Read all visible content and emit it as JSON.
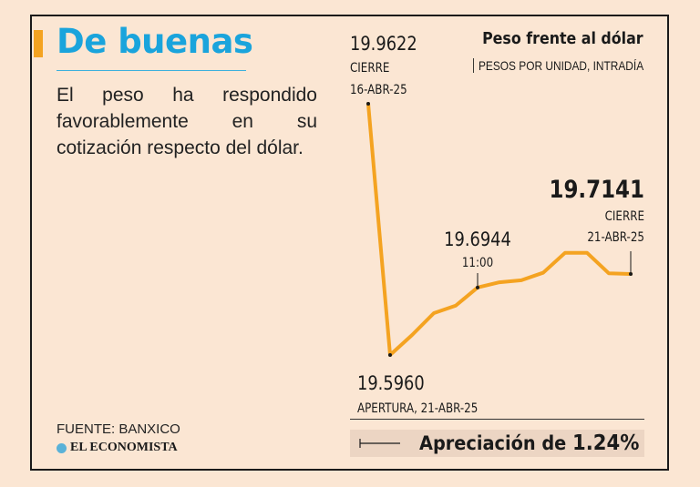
{
  "headline": "De buenas",
  "summary": "El peso ha respondido favorablemente en su cotización respecto del dólar.",
  "source": "FUENTE: BANXICO",
  "brand": "EL ECONOMISTA",
  "appreciation": {
    "label": "Apreciación de",
    "value": "1.24%"
  },
  "chart_data": {
    "type": "line",
    "title": "Peso frente al dólar",
    "subtitle": "PESOS POR UNIDAD, INTRADÍA",
    "series": [
      {
        "name": "Peso frente al dólar",
        "values": [
          19.9622,
          19.596,
          19.625,
          19.657,
          19.668,
          19.6944,
          19.702,
          19.705,
          19.716,
          19.745,
          19.745,
          19.715,
          19.7141
        ]
      }
    ],
    "ylim": [
      19.55,
      20.0
    ],
    "annotations": [
      {
        "value": "19.9622",
        "label": "CIERRE",
        "sublabel": "16-ABR-25",
        "point": 0
      },
      {
        "value": "19.5960",
        "label": "APERTURA, 21-ABR-25",
        "point": 1
      },
      {
        "value": "19.6944",
        "label": "11:00",
        "point": 5
      },
      {
        "value": "19.7141",
        "label": "CIERRE",
        "sublabel": "21-ABR-25",
        "point": 12
      }
    ],
    "colors": {
      "line": "#f4a321",
      "marker": "#1a1a1a",
      "text": "#1a1a1a"
    }
  }
}
